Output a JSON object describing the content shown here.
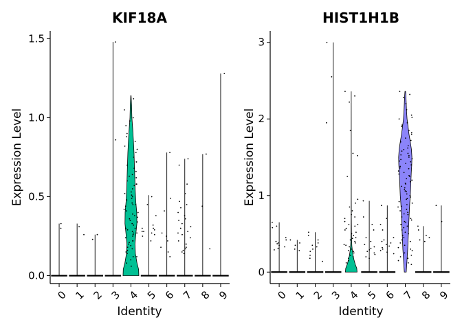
{
  "chart_data": [
    {
      "type": "violin",
      "title": "KIF18A",
      "xlabel": "Identity",
      "ylabel": "Expression Level",
      "categories": [
        "0",
        "1",
        "2",
        "3",
        "4",
        "5",
        "6",
        "7",
        "8",
        "9"
      ],
      "ylim": [
        -0.05,
        1.55
      ],
      "yticks": [
        "0.0",
        "0.5",
        "1.0",
        "1.5"
      ],
      "ytick_values": [
        0,
        0.5,
        1.0,
        1.5
      ],
      "grid": false,
      "legend": "none",
      "max_values": [
        0.33,
        0.33,
        0.26,
        1.48,
        1.14,
        0.51,
        0.78,
        0.74,
        0.77,
        1.28
      ],
      "violins": [
        {
          "category": "4",
          "color": "#00C094",
          "profile": [
            [
              0,
              0.98
            ],
            [
              0.04,
              0.95
            ],
            [
              0.08,
              0.75
            ],
            [
              0.14,
              0.55
            ],
            [
              0.2,
              0.5
            ],
            [
              0.27,
              0.62
            ],
            [
              0.33,
              0.74
            ],
            [
              0.4,
              0.72
            ],
            [
              0.47,
              0.6
            ],
            [
              0.55,
              0.52
            ],
            [
              0.62,
              0.48
            ],
            [
              0.7,
              0.43
            ],
            [
              0.78,
              0.38
            ],
            [
              0.86,
              0.3
            ],
            [
              0.93,
              0.22
            ],
            [
              1.0,
              0.12
            ],
            [
              1.08,
              0.08
            ],
            [
              1.14,
              0.02
            ]
          ]
        }
      ],
      "points": [
        {
          "category": "0",
          "values": [
            0.33,
            0.3
          ]
        },
        {
          "category": "1",
          "values": [
            0.31,
            0.26
          ]
        },
        {
          "category": "2",
          "values": [
            0.26,
            0.23
          ]
        },
        {
          "category": "3",
          "values": [
            1.48,
            0.86
          ]
        },
        {
          "category": "4",
          "values": [
            1.12,
            1.05,
            1.0,
            0.98,
            0.95,
            0.9,
            0.88,
            0.85,
            0.82,
            0.8,
            0.78,
            0.75,
            0.72,
            0.7,
            0.68,
            0.66,
            0.64,
            0.62,
            0.6,
            0.58,
            0.57,
            0.55,
            0.53,
            0.52,
            0.5,
            0.49,
            0.48,
            0.46,
            0.45,
            0.44,
            0.42,
            0.41,
            0.4,
            0.38,
            0.37,
            0.36,
            0.34,
            0.33,
            0.32,
            0.3,
            0.29,
            0.28,
            0.27,
            0.26,
            0.25,
            0.24,
            0.22,
            0.21,
            0.2,
            0.19,
            0.18,
            0.16,
            0.15,
            0.14,
            0.12,
            0.1,
            0.08,
            0.06,
            0.58,
            0.45,
            0.35,
            0.3,
            0.22,
            0.72,
            0.63,
            0.51,
            0.39,
            0.27,
            0.17,
            0.12
          ]
        },
        {
          "category": "5",
          "values": [
            0.5,
            0.45,
            0.38,
            0.32,
            0.3,
            0.29,
            0.28,
            0.27,
            0.26,
            0.25,
            0.22,
            0.3,
            0.28
          ]
        },
        {
          "category": "6",
          "values": [
            0.78,
            0.49,
            0.41,
            0.27,
            0.25,
            0.22,
            0.18,
            0.15,
            0.12
          ]
        },
        {
          "category": "7",
          "values": [
            0.74,
            0.7,
            0.58,
            0.52,
            0.47,
            0.43,
            0.4,
            0.38,
            0.36,
            0.33,
            0.3,
            0.28,
            0.26,
            0.24,
            0.22,
            0.2,
            0.18,
            0.17,
            0.16,
            0.15,
            0.14,
            0.35,
            0.31,
            0.27,
            0.45,
            0.2
          ]
        },
        {
          "category": "8",
          "values": [
            0.77,
            0.44,
            0.17
          ]
        },
        {
          "category": "9",
          "values": [
            1.28
          ]
        }
      ]
    },
    {
      "type": "violin",
      "title": "HIST1H1B",
      "xlabel": "Identity",
      "ylabel": "Expression Level",
      "categories": [
        "0",
        "1",
        "2",
        "3",
        "4",
        "5",
        "6",
        "7",
        "8",
        "9"
      ],
      "ylim": [
        -0.15,
        3.15
      ],
      "yticks": [
        "0",
        "1",
        "2",
        "3"
      ],
      "ytick_values": [
        0,
        1,
        2,
        3
      ],
      "grid": false,
      "legend": "none",
      "max_values": [
        0.65,
        0.42,
        0.52,
        3.0,
        2.36,
        0.93,
        0.87,
        2.36,
        0.6,
        0.87
      ],
      "violins": [
        {
          "category": "4",
          "color": "#00C094",
          "profile": [
            [
              0,
              0.72
            ],
            [
              0.05,
              0.68
            ],
            [
              0.1,
              0.5
            ],
            [
              0.16,
              0.34
            ],
            [
              0.22,
              0.22
            ],
            [
              0.28,
              0.14
            ],
            [
              0.34,
              0.08
            ],
            [
              0.4,
              0.05
            ],
            [
              0.5,
              0.03
            ],
            [
              0.7,
              0.015
            ],
            [
              1.0,
              0.008
            ],
            [
              1.5,
              0.005
            ],
            [
              2.0,
              0.003
            ],
            [
              2.36,
              0.0
            ]
          ]
        },
        {
          "category": "7",
          "color": "#8B84FA",
          "profile": [
            [
              0,
              0.12
            ],
            [
              0.1,
              0.18
            ],
            [
              0.2,
              0.24
            ],
            [
              0.3,
              0.3
            ],
            [
              0.4,
              0.34
            ],
            [
              0.5,
              0.38
            ],
            [
              0.6,
              0.42
            ],
            [
              0.7,
              0.46
            ],
            [
              0.8,
              0.5
            ],
            [
              0.9,
              0.55
            ],
            [
              1.0,
              0.62
            ],
            [
              1.1,
              0.66
            ],
            [
              1.2,
              0.7
            ],
            [
              1.3,
              0.74
            ],
            [
              1.4,
              0.8
            ],
            [
              1.5,
              0.82
            ],
            [
              1.6,
              0.76
            ],
            [
              1.7,
              0.62
            ],
            [
              1.8,
              0.46
            ],
            [
              1.9,
              0.34
            ],
            [
              2.0,
              0.22
            ],
            [
              2.1,
              0.16
            ],
            [
              2.2,
              0.12
            ],
            [
              2.3,
              0.08
            ],
            [
              2.36,
              0.04
            ]
          ]
        }
      ],
      "points": [
        {
          "category": "0",
          "values": [
            0.65,
            0.6,
            0.58,
            0.45,
            0.42,
            0.4,
            0.38,
            0.37,
            0.35,
            0.33,
            0.31,
            0.29
          ]
        },
        {
          "category": "1",
          "values": [
            0.42,
            0.38,
            0.35,
            0.3,
            0.28
          ]
        },
        {
          "category": "2",
          "values": [
            0.52,
            0.48,
            0.42,
            0.38,
            0.35,
            0.33,
            0.3,
            0.27,
            0.22,
            0.18,
            0.14
          ]
        },
        {
          "category": "3",
          "values": [
            3.0,
            2.55,
            1.95
          ]
        },
        {
          "category": "4",
          "values": [
            2.36,
            2.3,
            2.22,
            1.85,
            1.55,
            1.52,
            1.25,
            0.95,
            0.9,
            0.85,
            0.8,
            0.75,
            0.72,
            0.7,
            0.66,
            0.62,
            0.6,
            0.55,
            0.52,
            0.48,
            0.45,
            0.42,
            0.4,
            0.38,
            0.36,
            0.33,
            0.3,
            0.27,
            0.25,
            0.22,
            0.2,
            0.18,
            0.15,
            0.12,
            0.62,
            0.57,
            0.5,
            0.44,
            0.35,
            0.28
          ]
        },
        {
          "category": "5",
          "values": [
            0.93,
            0.72,
            0.62,
            0.55,
            0.45,
            0.4,
            0.36,
            0.33,
            0.31,
            0.29,
            0.27,
            0.25,
            0.23,
            0.2,
            0.18
          ]
        },
        {
          "category": "6",
          "values": [
            0.87,
            0.7,
            0.62,
            0.55,
            0.45,
            0.42,
            0.4,
            0.38,
            0.36,
            0.34,
            0.32,
            0.3,
            0.28,
            0.26,
            0.24
          ]
        },
        {
          "category": "7",
          "values": [
            2.36,
            2.32,
            2.28,
            2.2,
            2.12,
            2.05,
            2.0,
            1.95,
            1.9,
            1.85,
            1.8,
            1.75,
            1.7,
            1.65,
            1.6,
            1.55,
            1.52,
            1.5,
            1.48,
            1.45,
            1.42,
            1.4,
            1.38,
            1.35,
            1.32,
            1.3,
            1.28,
            1.25,
            1.22,
            1.2,
            1.18,
            1.15,
            1.12,
            1.1,
            1.08,
            1.05,
            1.02,
            1.0,
            0.98,
            0.95,
            0.92,
            0.9,
            0.88,
            0.85,
            0.82,
            0.8,
            0.78,
            0.75,
            0.72,
            0.7,
            0.68,
            0.65,
            0.62,
            0.6,
            0.58,
            0.55,
            0.52,
            0.5,
            0.48,
            0.45,
            0.42,
            0.4,
            0.38,
            0.35,
            0.32,
            0.3,
            0.28,
            0.25,
            0.22,
            0.2,
            0.18,
            0.15,
            0.12,
            0.1,
            1.58,
            1.62,
            1.47,
            1.53,
            1.44,
            1.36,
            1.26,
            1.16,
            1.06,
            0.96,
            0.86,
            0.76,
            0.66,
            1.72,
            1.82,
            1.92,
            2.02
          ]
        },
        {
          "category": "8",
          "values": [
            0.6,
            0.55,
            0.48,
            0.45,
            0.42,
            0.4
          ]
        },
        {
          "category": "9",
          "values": [
            0.87,
            0.66
          ]
        }
      ]
    }
  ]
}
